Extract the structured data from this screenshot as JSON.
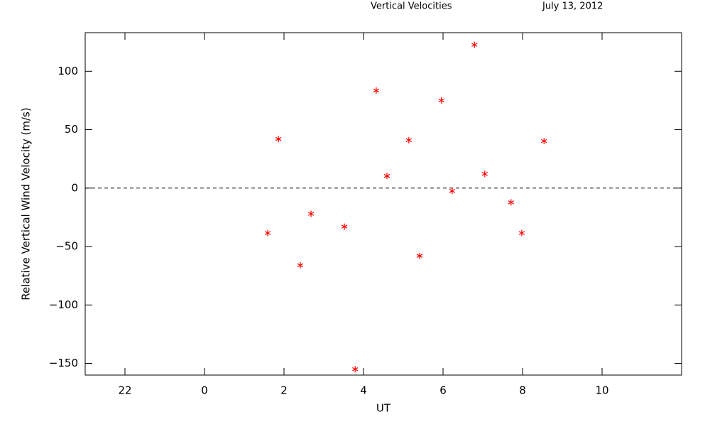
{
  "chart_data": {
    "type": "scatter",
    "title": "Vertical Velocities",
    "subtitle": "July 13, 2012",
    "x_label": "UT",
    "y_label": "Relative Vertical Wind Velocity (m/s)",
    "xlim": [
      -3,
      12
    ],
    "xticks": [
      {
        "value": -2,
        "label": "22"
      },
      0,
      2,
      4,
      6,
      8,
      10
    ],
    "ylim": [
      -160,
      133
    ],
    "yticks": [
      {
        "value": -150,
        "label": "−150"
      },
      {
        "value": -100,
        "label": "−100"
      },
      {
        "value": -50,
        "label": "−50"
      },
      0,
      50,
      100
    ],
    "reference_line": 0,
    "series": [
      {
        "color": "#ff0000",
        "x": [
          1.59,
          1.86,
          2.41,
          2.68,
          3.52,
          3.79,
          4.32,
          4.59,
          5.14,
          5.41,
          5.96,
          6.23,
          6.79,
          7.05,
          7.71,
          7.98,
          8.54
        ],
        "values": [
          -38.4,
          42,
          -66,
          -22,
          -33,
          -155,
          83.5,
          10.4,
          41,
          -58,
          75,
          -2.4,
          122.6,
          12.2,
          -12.2,
          -38.4,
          40.2
        ]
      }
    ]
  }
}
